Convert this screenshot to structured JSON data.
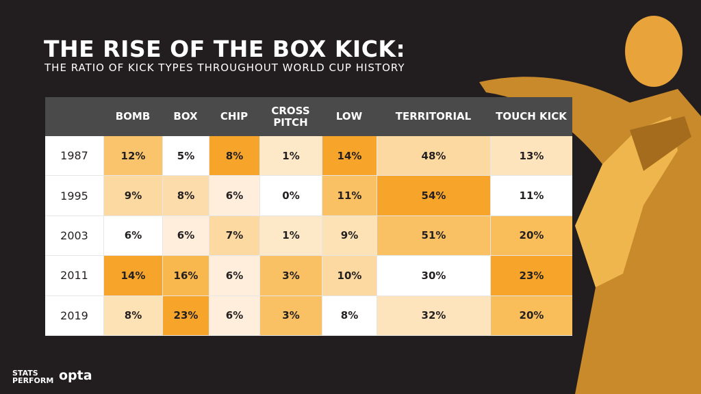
{
  "header": {
    "title": "THE RISE OF THE BOX KICK:",
    "subtitle": "THE RATIO OF KICK TYPES THROUGHOUT WORLD CUP HISTORY"
  },
  "table": {
    "columns": [
      "BOMB",
      "BOX",
      "CHIP",
      "CROSS PITCH",
      "LOW",
      "TERRITORIAL",
      "TOUCH KICK"
    ],
    "rows": [
      [
        "1987",
        "12%",
        "5%",
        "8%",
        "1%",
        "14%",
        "48%",
        "13%"
      ],
      [
        "1995",
        "9%",
        "8%",
        "6%",
        "0%",
        "11%",
        "54%",
        "11%"
      ],
      [
        "2003",
        "6%",
        "6%",
        "7%",
        "1%",
        "9%",
        "51%",
        "20%"
      ],
      [
        "2011",
        "14%",
        "16%",
        "6%",
        "3%",
        "10%",
        "30%",
        "23%"
      ],
      [
        "2019",
        "8%",
        "23%",
        "6%",
        "3%",
        "8%",
        "32%",
        "20%"
      ]
    ],
    "cell_colors": [
      [
        "#f9c46b",
        "#ffffff",
        "#f7a52a",
        "#fde8c8",
        "#f7a52a",
        "#fcd9a0",
        "#fde4bd"
      ],
      [
        "#fcd9a0",
        "#fcdcaa",
        "#feeedb",
        "#ffffff",
        "#f9c064",
        "#f7a42a",
        "#ffffff"
      ],
      [
        "#ffffff",
        "#feeedb",
        "#fcd9a0",
        "#fde8c8",
        "#fde2b5",
        "#f9c064",
        "#f9bd5a"
      ],
      [
        "#f7a52a",
        "#f9b84d",
        "#feeedb",
        "#f9c064",
        "#fcd9a0",
        "#ffffff",
        "#f7a52a"
      ],
      [
        "#fde2b5",
        "#f7a52a",
        "#feeedb",
        "#f9c064",
        "#ffffff",
        "#fde4bd",
        "#f9bd5a"
      ]
    ]
  },
  "footer": {
    "brand": "STATS PERFORM",
    "partner": "opta"
  }
}
